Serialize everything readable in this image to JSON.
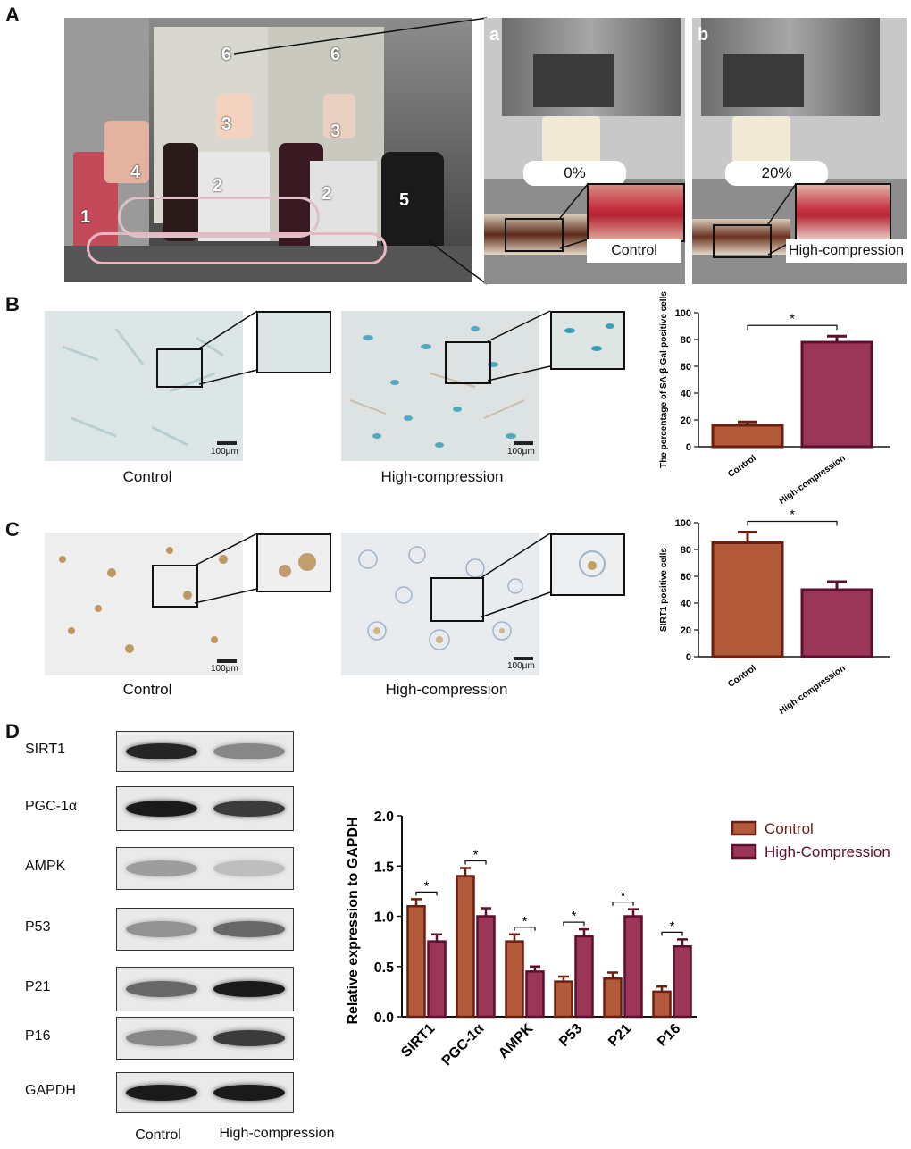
{
  "panel_labels": {
    "A": "A",
    "B": "B",
    "C": "C",
    "D": "D"
  },
  "panelA": {
    "apparatus_numbers": [
      "1",
      "2",
      "2",
      "3",
      "3",
      "4",
      "5",
      "6",
      "6"
    ],
    "sub_a": {
      "letter": "a",
      "strain": "0%",
      "caption": "Control"
    },
    "sub_b": {
      "letter": "b",
      "strain": "20%",
      "caption": "High-compression"
    }
  },
  "panelB": {
    "captions": [
      "Control",
      "High-compression"
    ],
    "scale_bar": "100μm"
  },
  "panelC": {
    "captions": [
      "Control",
      "High-compression"
    ],
    "scale_bar": "100μm"
  },
  "panelD": {
    "blot_labels": [
      "SIRT1",
      "PGC-1α",
      "AMPK",
      "P53",
      "P21",
      "P16",
      "GAPDH"
    ],
    "lane_labels": [
      "Control",
      "High-compression"
    ]
  },
  "colors": {
    "control": "#b35a3a",
    "control_edge": "#6b1f10",
    "high": "#9b3658",
    "high_edge": "#5c0f2e"
  },
  "chart_data": [
    {
      "type": "bar",
      "panel": "B",
      "categories": [
        "Control",
        "High-compression"
      ],
      "values": [
        16,
        78
      ],
      "errors": [
        2.5,
        4.5
      ],
      "ylabel": "The percentage of SA-β-Gal-positive cells",
      "ylim": [
        0,
        100
      ],
      "yticks": [
        0,
        20,
        40,
        60,
        80,
        100
      ],
      "significance": "*"
    },
    {
      "type": "bar",
      "panel": "C",
      "categories": [
        "Control",
        "High-compression"
      ],
      "values": [
        85,
        50
      ],
      "errors": [
        8,
        6
      ],
      "ylabel": "SIRT1 positive cells",
      "ylim": [
        0,
        100
      ],
      "yticks": [
        0,
        20,
        40,
        60,
        80,
        100
      ],
      "significance": "*"
    },
    {
      "type": "bar",
      "panel": "D",
      "categories": [
        "SIRT1",
        "PGC-1α",
        "AMPK",
        "P53",
        "P21",
        "P16"
      ],
      "series": [
        {
          "name": "Control",
          "values": [
            1.1,
            1.4,
            0.75,
            0.35,
            0.38,
            0.25
          ],
          "errors": [
            0.07,
            0.08,
            0.07,
            0.05,
            0.06,
            0.05
          ]
        },
        {
          "name": "High-Compression",
          "values": [
            0.75,
            1.0,
            0.45,
            0.8,
            1.0,
            0.7
          ],
          "errors": [
            0.07,
            0.08,
            0.05,
            0.07,
            0.07,
            0.07
          ]
        }
      ],
      "ylabel": "Relative expression to GAPDH",
      "ylim": [
        0,
        2.0
      ],
      "yticks": [
        "0.0",
        "0.5",
        "1.0",
        "1.5",
        "2.0"
      ],
      "significance": "*",
      "legend": "top-right"
    }
  ]
}
